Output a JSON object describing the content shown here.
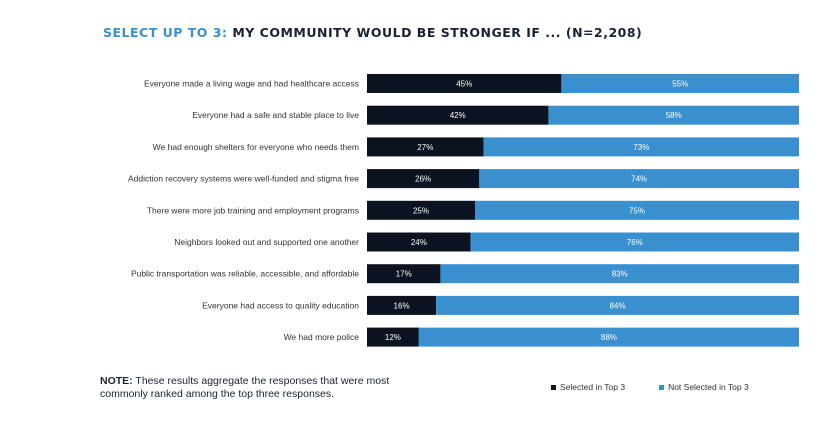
{
  "title": {
    "accent": "SELECT UP TO 3:",
    "main": "MY COMMUNITY WOULD BE STRONGER IF ... (N=2,208)"
  },
  "note": {
    "label": "NOTE:",
    "text": "These results aggregate the responses that were most commonly ranked among the top three responses."
  },
  "colors": {
    "selected": "#0b1321",
    "not_selected": "#3a8fcf",
    "text": "#333333"
  },
  "chart_data": {
    "type": "bar",
    "orientation": "horizontal",
    "stacked": true,
    "categories": [
      "Everyone made a living wage and had healthcare access",
      "Everyone had a safe and stable place to live",
      "We had enough shelters for everyone who needs them",
      "Addiction recovery systems were well-funded and stigma free",
      "There were more job training and employment programs",
      "Neighbors looked out and supported one another",
      "Public transportation was reliable, accessible, and affordable",
      "Everyone had access to quality education",
      "We had more police"
    ],
    "series": [
      {
        "name": "Selected in Top 3",
        "values": [
          45,
          42,
          27,
          26,
          25,
          24,
          17,
          16,
          12
        ]
      },
      {
        "name": "Not Selected in Top 3",
        "values": [
          55,
          58,
          73,
          74,
          75,
          76,
          83,
          84,
          88
        ]
      }
    ],
    "xlim": [
      0,
      100
    ],
    "legend": "bottom-right",
    "grid": false
  }
}
